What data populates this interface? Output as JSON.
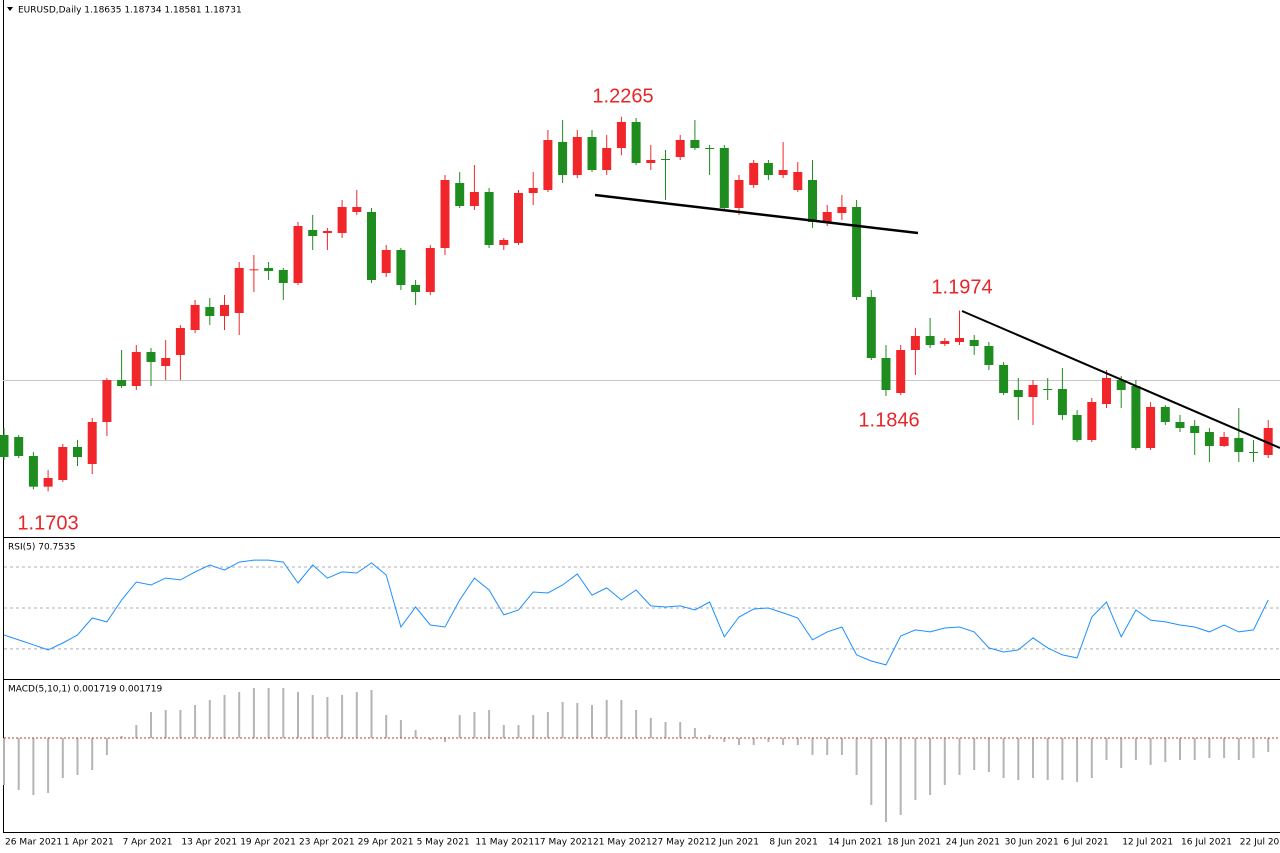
{
  "chart_data": [
    {
      "type": "candlestick",
      "title": "EURUSD,Daily  1.18635 1.18734 1.18581 1.18731",
      "categories": [
        "26 Mar 2021",
        null,
        null,
        null,
        "1 Apr 2021",
        null,
        null,
        null,
        "7 Apr 2021",
        null,
        null,
        null,
        "13 Apr 2021",
        null,
        null,
        null,
        "19 Apr 2021",
        null,
        null,
        null,
        "23 Apr 2021",
        null,
        null,
        null,
        "29 Apr 2021",
        null,
        null,
        null,
        "5 May 2021",
        null,
        null,
        null,
        "11 May 2021",
        null,
        null,
        null,
        "17 May 2021",
        null,
        null,
        null,
        "21 May 2021",
        null,
        null,
        null,
        "27 May 2021",
        null,
        null,
        null,
        "2 Jun 2021",
        null,
        null,
        null,
        "8 Jun 2021",
        null,
        null,
        null,
        "14 Jun 2021",
        null,
        null,
        null,
        "18 Jun 2021",
        null,
        null,
        null,
        "24 Jun 2021",
        null,
        null,
        null,
        "30 Jun 2021",
        null,
        null,
        null,
        "6 Jul 2021",
        null,
        null,
        null,
        "12 Jul 2021",
        null,
        null,
        null,
        "16 Jul 2021",
        null,
        null,
        null,
        "22 Jul 2021",
        null,
        null
      ],
      "open": [
        1.17875,
        1.17845,
        1.1756,
        1.171,
        1.172,
        1.17695,
        1.1744,
        1.1807,
        1.187,
        1.1861,
        1.1912,
        1.1891,
        1.19075,
        1.1945,
        1.19795,
        1.1966,
        1.19705,
        1.2035,
        1.2038,
        1.2035,
        1.20155,
        1.2095,
        1.20905,
        1.20905,
        1.2122,
        1.2122,
        1.20305,
        1.2065,
        1.20125,
        1.2002,
        1.2068,
        1.21655,
        1.2131,
        1.2152,
        1.20725,
        1.20755,
        1.21505,
        1.2155,
        1.2227,
        1.21775,
        1.22345,
        1.2185,
        1.2218,
        1.2257,
        1.21955,
        1.22015,
        1.22045,
        1.223,
        1.2218,
        1.2218,
        1.2128,
        1.21625,
        1.21955,
        1.21775,
        1.2155,
        1.217,
        1.2107,
        1.21205,
        1.21295,
        1.19945,
        1.1903,
        1.18505,
        1.1915,
        1.1936,
        1.1924,
        1.1927,
        1.193,
        1.1921,
        1.18925,
        1.1855,
        1.18445,
        1.18565,
        1.18565,
        1.18175,
        1.178,
        1.1834,
        1.187,
        1.1861,
        1.1768,
        1.18295,
        1.1807,
        1.1801,
        1.1792,
        1.1771,
        1.1783,
        1.1762,
        1.17575
      ],
      "high": [
        1.1798,
        1.17875,
        1.1762,
        1.1735,
        1.1774,
        1.178,
        1.1813,
        1.1873,
        1.1915,
        1.19225,
        1.1918,
        1.193,
        1.19525,
        1.199,
        1.1993,
        1.19975,
        1.2047,
        1.20575,
        1.2047,
        1.2038,
        1.2107,
        1.21175,
        1.2098,
        1.214,
        1.2155,
        1.2128,
        1.20725,
        1.2068,
        1.202,
        1.20725,
        1.21775,
        1.2182,
        1.21925,
        1.2158,
        1.2083,
        1.2155,
        1.2182,
        1.2245,
        1.226,
        1.2245,
        1.2245,
        1.22375,
        1.2265,
        1.2263,
        1.22225,
        1.2215,
        1.22375,
        1.226,
        1.22225,
        1.22225,
        1.21775,
        1.22,
        1.22,
        1.2227,
        1.2197,
        1.22,
        1.21325,
        1.21475,
        1.214,
        1.2005,
        1.19225,
        1.19225,
        1.1948,
        1.1963,
        1.1933,
        1.1974,
        1.19375,
        1.1927,
        1.1897,
        1.1873,
        1.187,
        1.1873,
        1.1888,
        1.1825,
        1.1843,
        1.1885,
        1.1876,
        1.187,
        1.1837,
        1.18325,
        1.18175,
        1.181,
        1.1798,
        1.1792,
        1.1828,
        1.178,
        1.181
      ],
      "low": [
        1.175,
        1.1753,
        1.1706,
        1.1703,
        1.1717,
        1.1741,
        1.1729,
        1.1786,
        1.1858,
        1.1855,
        1.1861,
        1.187,
        1.187,
        1.19405,
        1.19525,
        1.1945,
        1.19375,
        1.2002,
        1.202,
        1.199,
        1.20125,
        1.2065,
        1.2065,
        1.2083,
        1.21175,
        1.20155,
        1.20245,
        1.2005,
        1.19825,
        1.19975,
        1.20575,
        1.2128,
        1.2125,
        1.2068,
        1.2065,
        1.20725,
        1.21325,
        1.2152,
        1.21655,
        1.2173,
        1.2182,
        1.21775,
        1.2207,
        1.21925,
        1.2185,
        1.214,
        1.22,
        1.2215,
        1.21775,
        1.2125,
        1.21175,
        1.2158,
        1.217,
        1.2173,
        1.2152,
        1.2098,
        1.2101,
        1.211,
        1.199,
        1.19,
        1.1846,
        1.18475,
        1.18775,
        1.1918,
        1.1921,
        1.19225,
        1.19075,
        1.1885,
        1.18475,
        1.181,
        1.18025,
        1.184,
        1.181,
        1.1777,
        1.1777,
        1.1828,
        1.1828,
        1.1765,
        1.1765,
        1.18025,
        1.1792,
        1.17575,
        1.1747,
        1.17695,
        1.1747,
        1.1747,
        1.1753
      ],
      "close": [
        1.17545,
        1.1756,
        1.171,
        1.1723,
        1.17695,
        1.17545,
        1.1807,
        1.187,
        1.1861,
        1.1912,
        1.1897,
        1.1903,
        1.1948,
        1.19825,
        1.1966,
        1.19825,
        1.2038,
        1.2036,
        1.20335,
        1.20155,
        1.2101,
        1.2086,
        1.20935,
        1.21295,
        1.21295,
        1.202,
        1.2065,
        1.20125,
        1.2002,
        1.2068,
        1.217,
        1.2131,
        1.2152,
        1.20725,
        1.208,
        1.21505,
        1.2158,
        1.223,
        1.21775,
        1.22345,
        1.2185,
        1.2218,
        1.2257,
        1.21955,
        1.22,
        1.22,
        1.223,
        1.2218,
        1.22165,
        1.2128,
        1.217,
        1.21955,
        1.21775,
        1.2185,
        1.2182,
        1.2107,
        1.2122,
        1.21295,
        1.19945,
        1.1903,
        1.1855,
        1.1915,
        1.1936,
        1.19225,
        1.19285,
        1.1933,
        1.1921,
        1.18925,
        1.18505,
        1.18445,
        1.18625,
        1.1855,
        1.18175,
        1.178,
        1.1837,
        1.1873,
        1.1855,
        1.1768,
        1.18295,
        1.1807,
        1.1798,
        1.17905,
        1.1771,
        1.17845,
        1.1762,
        1.17605,
        1.1798
      ],
      "ylim": [
        1.1636,
        1.2434
      ],
      "up_color": "#f0262a",
      "down_color": "#1e8c1e",
      "annotations": [
        "1.2265",
        "1.1974",
        "1.1846",
        "1.1703"
      ]
    },
    {
      "type": "line",
      "title": "RSI(5) 70.7535",
      "color": "#1e90ff",
      "values": [
        36.8,
        34.4,
        32.0,
        29.5,
        32.9,
        36.8,
        45.1,
        43.2,
        53.9,
        62.7,
        61.2,
        64.6,
        63.7,
        67.6,
        71.0,
        68.5,
        72.4,
        73.4,
        73.4,
        72.4,
        62.2,
        71.0,
        64.6,
        67.6,
        67.1,
        72.0,
        66.1,
        40.7,
        50.5,
        41.7,
        40.7,
        53.9,
        64.6,
        58.8,
        46.6,
        49.0,
        57.8,
        57.3,
        61.2,
        66.6,
        56.3,
        59.8,
        53.9,
        58.8,
        51.0,
        50.5,
        51.0,
        49.0,
        52.9,
        35.9,
        45.6,
        49.5,
        50.0,
        47.6,
        45.1,
        34.4,
        38.3,
        40.7,
        27.1,
        24.1,
        22.2,
        36.3,
        39.3,
        38.3,
        40.2,
        40.7,
        38.3,
        30.5,
        28.5,
        29.5,
        35.4,
        30.5,
        27.1,
        25.6,
        45.6,
        52.9,
        35.9,
        49.0,
        44.1,
        43.2,
        41.7,
        40.7,
        38.3,
        41.7,
        38.3,
        39.3,
        53.9
      ],
      "ylim": [
        15.8,
        83.2
      ],
      "levels": [
        30,
        50,
        70
      ]
    },
    {
      "type": "bar",
      "title": "MACD(5,10,1) 0.001719 0.001719",
      "color": "#b4b4b4",
      "zero_color": "#c0392b",
      "values": [
        -0.00235,
        -0.0026,
        -0.00285,
        -0.00275,
        -0.002,
        -0.00185,
        -0.0016,
        -0.00085,
        0.0001,
        0.00065,
        0.0013,
        0.0014,
        0.0014,
        0.00165,
        0.0019,
        0.00215,
        0.0023,
        0.0025,
        0.0025,
        0.0025,
        0.0023,
        0.00215,
        0.00205,
        0.00215,
        0.0023,
        0.0024,
        0.00115,
        0.0009,
        0.0004,
        -0.0001,
        -0.0002,
        0.00115,
        0.0013,
        0.0014,
        0.00065,
        0.00065,
        0.00115,
        0.0013,
        0.0018,
        0.00175,
        0.00165,
        0.0019,
        0.0019,
        0.0014,
        0.001,
        0.0008,
        0.0008,
        0.0005,
        0.00015,
        -0.0002,
        -0.00035,
        -0.00035,
        -0.0002,
        -0.00035,
        -0.00035,
        -0.00085,
        -0.00085,
        -0.00085,
        -0.00185,
        -0.00335,
        -0.0042,
        -0.00385,
        -0.0031,
        -0.00285,
        -0.00235,
        -0.00185,
        -0.0016,
        -0.0017,
        -0.002,
        -0.0021,
        -0.002,
        -0.0021,
        -0.0021,
        -0.0022,
        -0.002,
        -0.0011,
        -0.0015,
        -0.0011,
        -0.00135,
        -0.0012,
        -0.0011,
        -0.0011,
        -0.001,
        -0.001,
        -0.0011,
        -0.001,
        -0.0007
      ],
      "ylim": [
        -0.0047,
        0.00285
      ]
    }
  ]
}
